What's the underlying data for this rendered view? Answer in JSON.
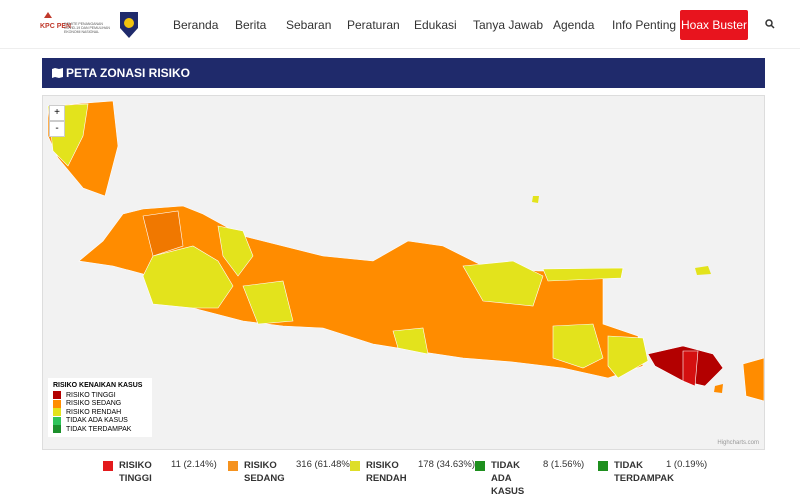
{
  "header": {
    "logo": {
      "acronym": "KPC PEN",
      "text": "KOMITE PENANGANAN COVID-19 DAN PEMULIHAN EKONOMI NASIONAL"
    },
    "nav": [
      "Beranda",
      "Berita",
      "Sebaran",
      "Peraturan",
      "Edukasi",
      "Tanya Jawab",
      "Agenda",
      "Info Penting"
    ],
    "button": "Hoax Buster"
  },
  "section": {
    "title": "PETA ZONASI RISIKO"
  },
  "map": {
    "zoom": [
      "+",
      "-"
    ],
    "legend": {
      "title": "RISIKO KENAIKAN KASUS",
      "items": [
        {
          "label": "RISIKO TINGGI",
          "color": "#b30000"
        },
        {
          "label": "RISIKO SEDANG",
          "color": "#ff8c00"
        },
        {
          "label": "RISIKO RENDAH",
          "color": "#e3e31c"
        },
        {
          "label": "TIDAK ADA KASUS",
          "color": "#2ec45a"
        },
        {
          "label": "TIDAK TERDAMPAK",
          "color": "#1b8f2b"
        }
      ]
    },
    "credit": "Highcharts.com"
  },
  "stats": [
    {
      "label": "RISIKO TINGGI",
      "value": "11 (2.14%)",
      "color": "#e31a1c"
    },
    {
      "label": "RISIKO SEDANG",
      "value": "316 (61.48%)",
      "color": "#f5921e"
    },
    {
      "label": "RISIKO RENDAH",
      "value": "178 (34.63%)",
      "color": "#dede28"
    },
    {
      "label": "TIDAK ADA KASUS",
      "value": "8 (1.56%)",
      "color": "#1e8f1e"
    },
    {
      "label": "TIDAK TERDAMPAK",
      "value": "1 (0.19%)",
      "color": "#1e8f1e"
    }
  ]
}
